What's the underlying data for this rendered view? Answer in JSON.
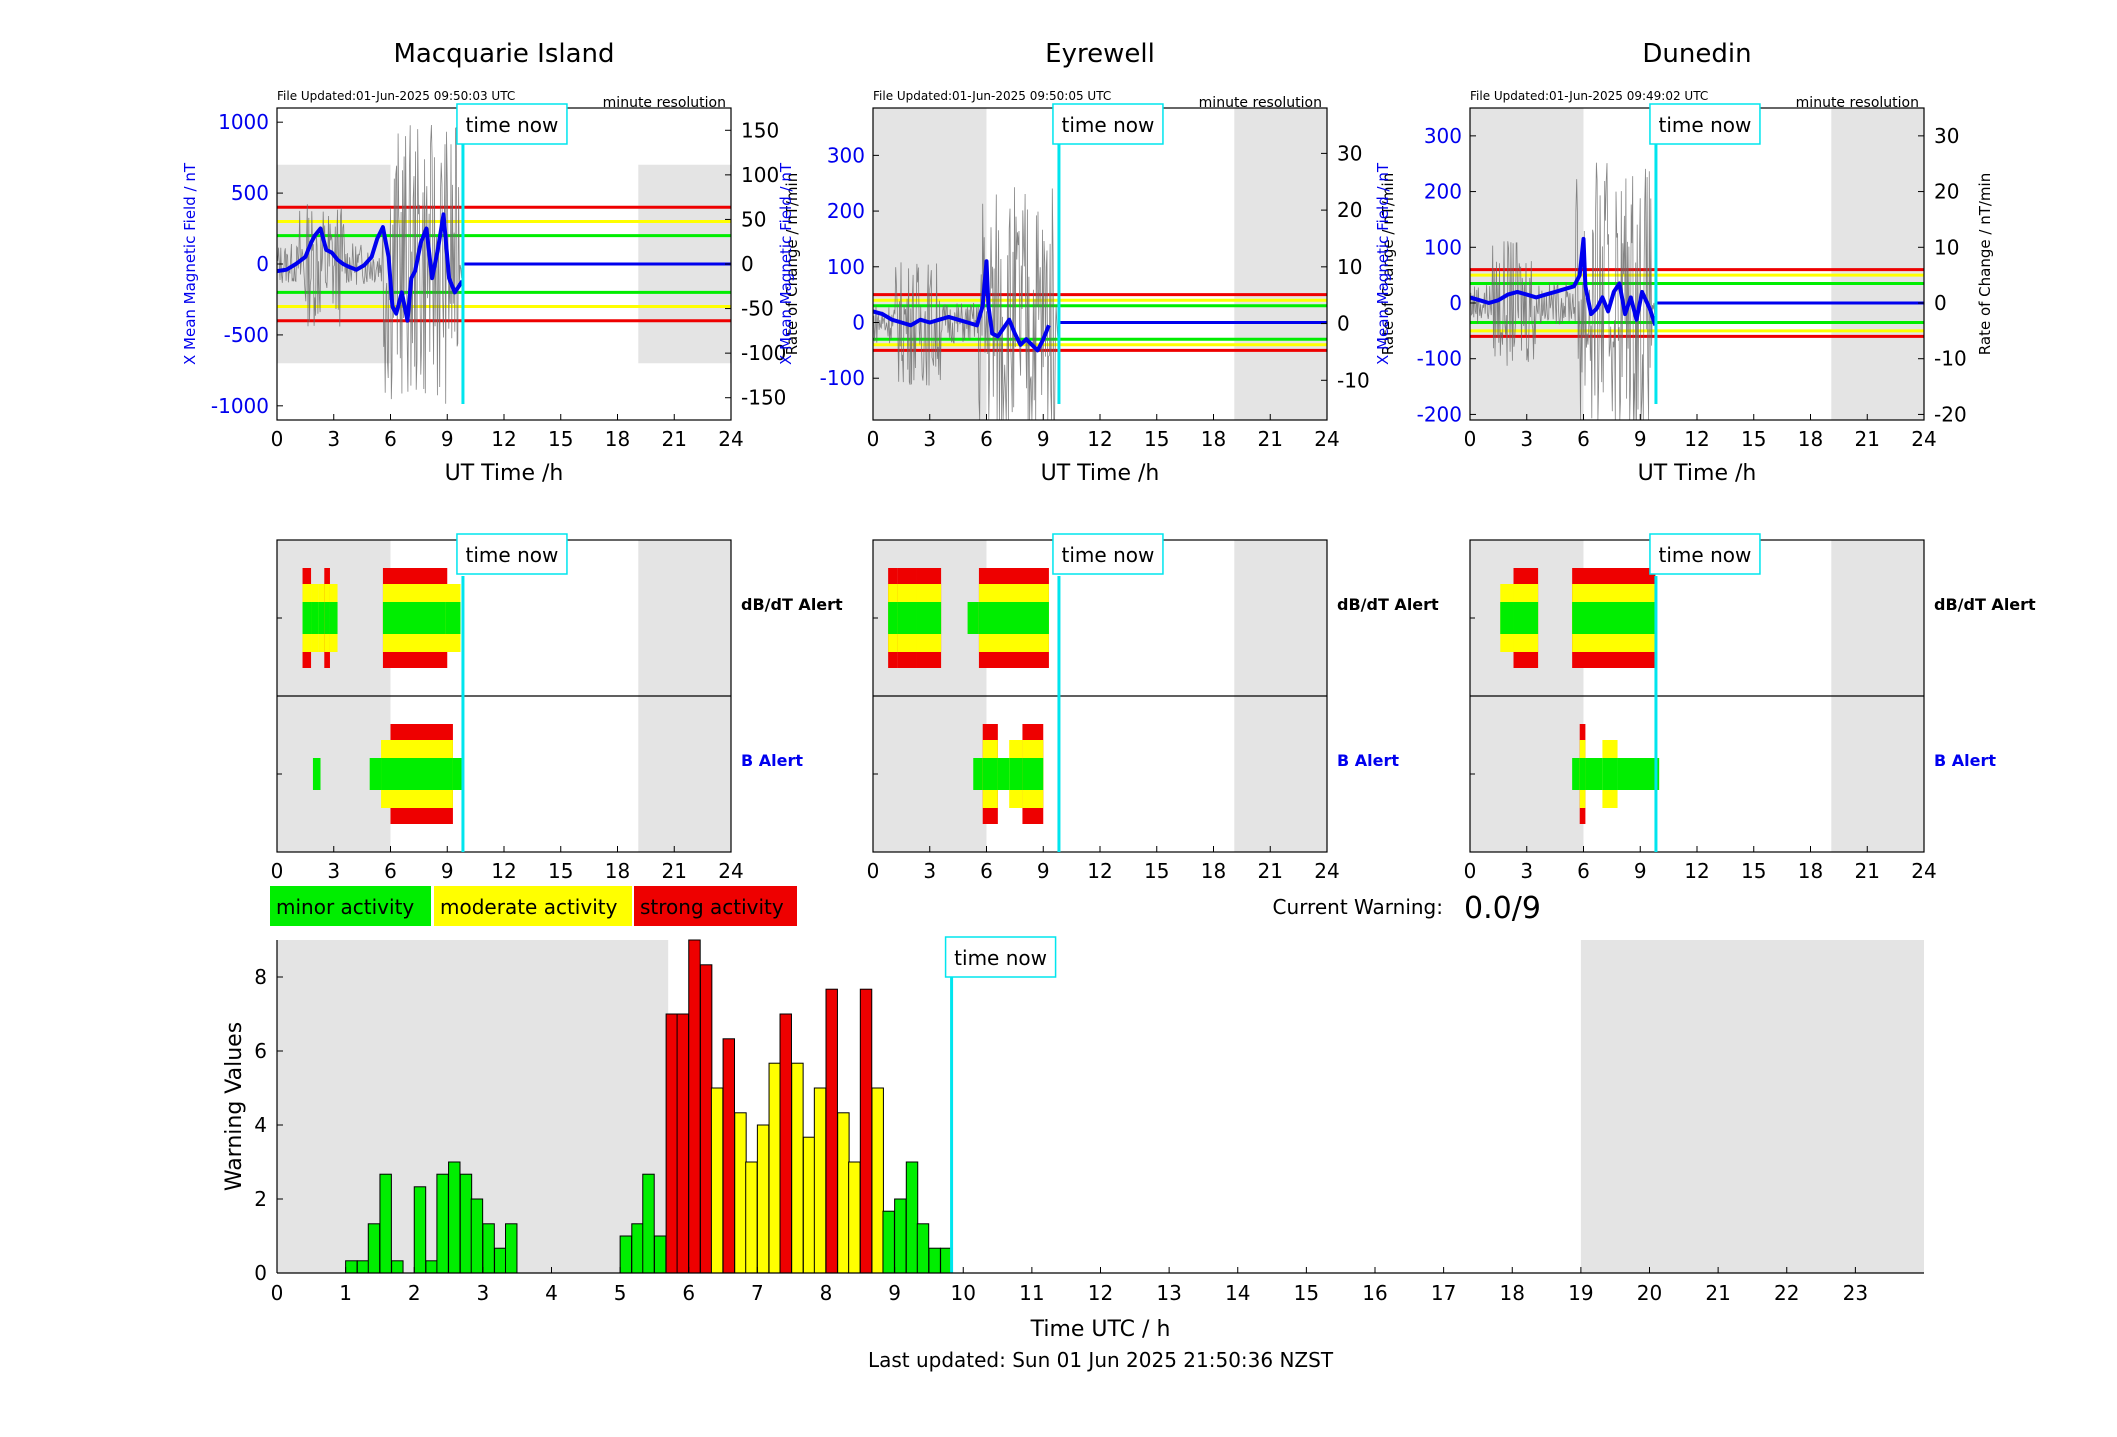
{
  "colors": {
    "minor": "#00ee00",
    "moderate": "#ffff00",
    "strong": "#ee0000",
    "night": "#e4e4e4",
    "time_now": "#00e5ee",
    "series": "#0000ee",
    "axis_left": "#0000ee"
  },
  "header": {
    "time_now_label": "time now",
    "resolution_label": "minute resolution",
    "x_axis_label": "UT Time /h",
    "dbdt_alert_label": "dB/dT Alert",
    "b_alert_label": "B Alert"
  },
  "legend": {
    "minor": "minor activity",
    "moderate": "moderate activity",
    "strong": "strong activity"
  },
  "current_warning": {
    "label": "Current Warning:",
    "value": "0.0/9"
  },
  "footer": {
    "last_updated": "Last updated: Sun 01 Jun 2025 21:50:36 NZST"
  },
  "stations": [
    {
      "name": "Macquarie Island",
      "file_updated": "File Updated:01-Jun-2025 09:50:03 UTC",
      "left_axis_label": "X Mean Magnetic Field / nT",
      "right_axis_label": "Rate of Change / nT/min",
      "left_ylim": [
        -1100,
        1100
      ],
      "left_ticks": [
        "1000",
        "500",
        "0",
        "-500",
        "-1000"
      ],
      "left_tick_values": [
        1000,
        500,
        0,
        -500,
        -1000
      ],
      "right_ylim": [
        -175,
        175
      ],
      "right_ticks": [
        "150",
        "100",
        "50",
        "0",
        "-50",
        "-100",
        "-150"
      ],
      "right_tick_values": [
        150,
        100,
        50,
        0,
        -50,
        -100,
        -150
      ],
      "night_range_y": [
        -700,
        700
      ],
      "thresholds": {
        "green": 200,
        "yellow": 300,
        "red": 400
      },
      "b_series": [
        [
          0,
          -50
        ],
        [
          0.5,
          -40
        ],
        [
          1,
          0
        ],
        [
          1.5,
          50
        ],
        [
          1.8,
          150
        ],
        [
          2,
          200
        ],
        [
          2.3,
          250
        ],
        [
          2.6,
          100
        ],
        [
          2.9,
          80
        ],
        [
          3.2,
          30
        ],
        [
          3.5,
          0
        ],
        [
          3.8,
          -20
        ],
        [
          4.2,
          -40
        ],
        [
          4.6,
          -10
        ],
        [
          5,
          50
        ],
        [
          5.3,
          180
        ],
        [
          5.6,
          260
        ],
        [
          5.9,
          50
        ],
        [
          6.1,
          -300
        ],
        [
          6.3,
          -350
        ],
        [
          6.6,
          -200
        ],
        [
          6.9,
          -400
        ],
        [
          7.1,
          -100
        ],
        [
          7.3,
          -50
        ],
        [
          7.6,
          150
        ],
        [
          7.9,
          250
        ],
        [
          8.2,
          -100
        ],
        [
          8.5,
          100
        ],
        [
          8.8,
          350
        ],
        [
          9.1,
          -100
        ],
        [
          9.4,
          -200
        ],
        [
          9.8,
          -120
        ]
      ],
      "dbdt_alert": [
        {
          "start": 1.35,
          "end": 1.8,
          "level": "strong"
        },
        {
          "start": 1.8,
          "end": 2.2,
          "level": "moderate"
        },
        {
          "start": 2.2,
          "end": 3.2,
          "level": "moderate"
        },
        {
          "start": 2.5,
          "end": 2.8,
          "level": "strong"
        },
        {
          "start": 5.6,
          "end": 9.0,
          "level": "strong"
        },
        {
          "start": 8.9,
          "end": 9.7,
          "level": "moderate"
        }
      ],
      "b_alert": [
        {
          "start": 1.9,
          "end": 2.3,
          "level": "minor"
        },
        {
          "start": 4.9,
          "end": 5.5,
          "level": "minor"
        },
        {
          "start": 5.5,
          "end": 6.0,
          "level": "moderate"
        },
        {
          "start": 6.0,
          "end": 9.3,
          "level": "strong"
        },
        {
          "start": 9.3,
          "end": 9.8,
          "level": "minor"
        }
      ]
    },
    {
      "name": "Eyrewell",
      "file_updated": "File Updated:01-Jun-2025 09:50:05 UTC",
      "left_axis_label": "X Mean Magnetic Field / nT",
      "right_axis_label": "Rate of Change / nT/min",
      "left_ylim": [
        -175,
        385
      ],
      "left_ticks": [
        "300",
        "200",
        "100",
        "0",
        "-100"
      ],
      "left_tick_values": [
        300,
        200,
        100,
        0,
        -100
      ],
      "right_ylim": [
        -17,
        38
      ],
      "right_ticks": [
        "30",
        "20",
        "10",
        "0",
        "-10"
      ],
      "right_tick_values": [
        30,
        20,
        10,
        0,
        -10
      ],
      "night_range_y": [
        -175,
        385
      ],
      "thresholds": {
        "green": 30,
        "yellow": 40,
        "red": 50
      },
      "b_series": [
        [
          0,
          20
        ],
        [
          0.5,
          15
        ],
        [
          1,
          5
        ],
        [
          1.5,
          0
        ],
        [
          2,
          -5
        ],
        [
          2.5,
          5
        ],
        [
          3,
          0
        ],
        [
          3.5,
          5
        ],
        [
          4,
          10
        ],
        [
          4.5,
          5
        ],
        [
          5,
          0
        ],
        [
          5.5,
          -5
        ],
        [
          5.8,
          30
        ],
        [
          6.0,
          110
        ],
        [
          6.1,
          30
        ],
        [
          6.3,
          -20
        ],
        [
          6.6,
          -25
        ],
        [
          6.9,
          -10
        ],
        [
          7.2,
          5
        ],
        [
          7.5,
          -20
        ],
        [
          7.8,
          -40
        ],
        [
          8.1,
          -30
        ],
        [
          8.4,
          -40
        ],
        [
          8.7,
          -50
        ],
        [
          9.0,
          -30
        ],
        [
          9.3,
          -5
        ]
      ],
      "dbdt_alert": [
        {
          "start": 0.8,
          "end": 1.3,
          "level": "strong"
        },
        {
          "start": 1.3,
          "end": 2.3,
          "level": "strong"
        },
        {
          "start": 2.3,
          "end": 3.6,
          "level": "strong"
        },
        {
          "start": 5.0,
          "end": 5.6,
          "level": "minor"
        },
        {
          "start": 5.6,
          "end": 9.3,
          "level": "strong"
        }
      ],
      "b_alert": [
        {
          "start": 5.3,
          "end": 5.8,
          "level": "minor"
        },
        {
          "start": 5.8,
          "end": 6.6,
          "level": "strong"
        },
        {
          "start": 6.6,
          "end": 7.2,
          "level": "minor"
        },
        {
          "start": 7.2,
          "end": 7.9,
          "level": "moderate"
        },
        {
          "start": 7.9,
          "end": 9.0,
          "level": "strong"
        }
      ]
    },
    {
      "name": "Dunedin",
      "file_updated": "File Updated:01-Jun-2025 09:49:02 UTC",
      "left_axis_label": "X Mean Magnetic Field / nT",
      "right_axis_label": "Rate of Change / nT/min",
      "left_ylim": [
        -210,
        350
      ],
      "left_ticks": [
        "300",
        "200",
        "100",
        "0",
        "-100",
        "-200"
      ],
      "left_tick_values": [
        300,
        200,
        100,
        0,
        -100,
        -200
      ],
      "right_ylim": [
        -21,
        35
      ],
      "right_ticks": [
        "30",
        "20",
        "10",
        "0",
        "-10",
        "-20"
      ],
      "right_tick_values": [
        30,
        20,
        10,
        0,
        -10,
        -20
      ],
      "night_range_y": [
        -210,
        350
      ],
      "thresholds": {
        "green": 35,
        "yellow": 50,
        "red": 60
      },
      "b_series": [
        [
          0,
          10
        ],
        [
          0.5,
          5
        ],
        [
          1,
          0
        ],
        [
          1.5,
          5
        ],
        [
          2,
          15
        ],
        [
          2.5,
          20
        ],
        [
          3,
          15
        ],
        [
          3.5,
          10
        ],
        [
          4,
          15
        ],
        [
          4.5,
          20
        ],
        [
          5,
          25
        ],
        [
          5.5,
          30
        ],
        [
          5.8,
          50
        ],
        [
          6.0,
          115
        ],
        [
          6.1,
          30
        ],
        [
          6.4,
          -20
        ],
        [
          6.7,
          -10
        ],
        [
          7.0,
          10
        ],
        [
          7.3,
          -15
        ],
        [
          7.6,
          20
        ],
        [
          7.9,
          35
        ],
        [
          8.2,
          -20
        ],
        [
          8.5,
          10
        ],
        [
          8.8,
          -30
        ],
        [
          9.1,
          20
        ],
        [
          9.5,
          -10
        ],
        [
          9.8,
          -40
        ]
      ],
      "dbdt_alert": [
        {
          "start": 1.6,
          "end": 2.3,
          "level": "moderate"
        },
        {
          "start": 2.3,
          "end": 3.6,
          "level": "strong"
        },
        {
          "start": 5.4,
          "end": 9.8,
          "level": "strong"
        }
      ],
      "b_alert": [
        {
          "start": 5.4,
          "end": 5.8,
          "level": "minor"
        },
        {
          "start": 5.8,
          "end": 6.1,
          "level": "strong"
        },
        {
          "start": 6.1,
          "end": 7.0,
          "level": "minor"
        },
        {
          "start": 7.0,
          "end": 7.8,
          "level": "moderate"
        },
        {
          "start": 7.8,
          "end": 10.0,
          "level": "minor"
        }
      ]
    }
  ],
  "chart_data": [
    {
      "type": "bar",
      "title": "",
      "xlabel": "Time UTC / h",
      "ylabel": "Warning Values",
      "xlim": [
        0,
        24
      ],
      "ylim": [
        0,
        9
      ],
      "x_ticks": [
        "0",
        "1",
        "2",
        "3",
        "4",
        "5",
        "6",
        "7",
        "8",
        "9",
        "10",
        "11",
        "12",
        "13",
        "14",
        "15",
        "16",
        "17",
        "18",
        "19",
        "20",
        "21",
        "22",
        "23"
      ],
      "y_ticks": [
        "0",
        "2",
        "4",
        "6",
        "8"
      ],
      "night_ranges": [
        [
          0,
          5.7
        ],
        [
          19,
          24
        ]
      ],
      "time_now": 9.83,
      "bin_width_h": 0.1667,
      "bars": [
        {
          "x": 1.0,
          "value": 0.33,
          "level": "minor"
        },
        {
          "x": 1.17,
          "value": 0.33,
          "level": "minor"
        },
        {
          "x": 1.33,
          "value": 1.33,
          "level": "minor"
        },
        {
          "x": 1.5,
          "value": 2.67,
          "level": "minor"
        },
        {
          "x": 1.67,
          "value": 0.33,
          "level": "minor"
        },
        {
          "x": 2.0,
          "value": 2.33,
          "level": "minor"
        },
        {
          "x": 2.17,
          "value": 0.33,
          "level": "minor"
        },
        {
          "x": 2.33,
          "value": 2.67,
          "level": "minor"
        },
        {
          "x": 2.5,
          "value": 3.0,
          "level": "minor"
        },
        {
          "x": 2.67,
          "value": 2.67,
          "level": "minor"
        },
        {
          "x": 2.83,
          "value": 2.0,
          "level": "minor"
        },
        {
          "x": 3.0,
          "value": 1.33,
          "level": "minor"
        },
        {
          "x": 3.17,
          "value": 0.67,
          "level": "minor"
        },
        {
          "x": 3.33,
          "value": 1.33,
          "level": "minor"
        },
        {
          "x": 5.0,
          "value": 1.0,
          "level": "minor"
        },
        {
          "x": 5.17,
          "value": 1.33,
          "level": "minor"
        },
        {
          "x": 5.33,
          "value": 2.67,
          "level": "minor"
        },
        {
          "x": 5.5,
          "value": 1.0,
          "level": "minor"
        },
        {
          "x": 5.67,
          "value": 7.0,
          "level": "strong"
        },
        {
          "x": 5.83,
          "value": 7.0,
          "level": "strong"
        },
        {
          "x": 6.0,
          "value": 9.0,
          "level": "strong"
        },
        {
          "x": 6.17,
          "value": 8.33,
          "level": "strong"
        },
        {
          "x": 6.33,
          "value": 5.0,
          "level": "moderate"
        },
        {
          "x": 6.5,
          "value": 6.33,
          "level": "strong"
        },
        {
          "x": 6.67,
          "value": 4.33,
          "level": "moderate"
        },
        {
          "x": 6.83,
          "value": 3.0,
          "level": "moderate"
        },
        {
          "x": 7.0,
          "value": 4.0,
          "level": "moderate"
        },
        {
          "x": 7.17,
          "value": 5.67,
          "level": "moderate"
        },
        {
          "x": 7.33,
          "value": 7.0,
          "level": "strong"
        },
        {
          "x": 7.5,
          "value": 5.67,
          "level": "moderate"
        },
        {
          "x": 7.67,
          "value": 3.67,
          "level": "moderate"
        },
        {
          "x": 7.83,
          "value": 5.0,
          "level": "moderate"
        },
        {
          "x": 8.0,
          "value": 7.67,
          "level": "strong"
        },
        {
          "x": 8.17,
          "value": 4.33,
          "level": "moderate"
        },
        {
          "x": 8.33,
          "value": 3.0,
          "level": "moderate"
        },
        {
          "x": 8.5,
          "value": 7.67,
          "level": "strong"
        },
        {
          "x": 8.67,
          "value": 5.0,
          "level": "moderate"
        },
        {
          "x": 8.83,
          "value": 1.67,
          "level": "minor"
        },
        {
          "x": 9.0,
          "value": 2.0,
          "level": "minor"
        },
        {
          "x": 9.17,
          "value": 3.0,
          "level": "minor"
        },
        {
          "x": 9.33,
          "value": 1.33,
          "level": "minor"
        },
        {
          "x": 9.5,
          "value": 0.67,
          "level": "minor"
        },
        {
          "x": 9.67,
          "value": 0.67,
          "level": "minor"
        }
      ]
    }
  ]
}
